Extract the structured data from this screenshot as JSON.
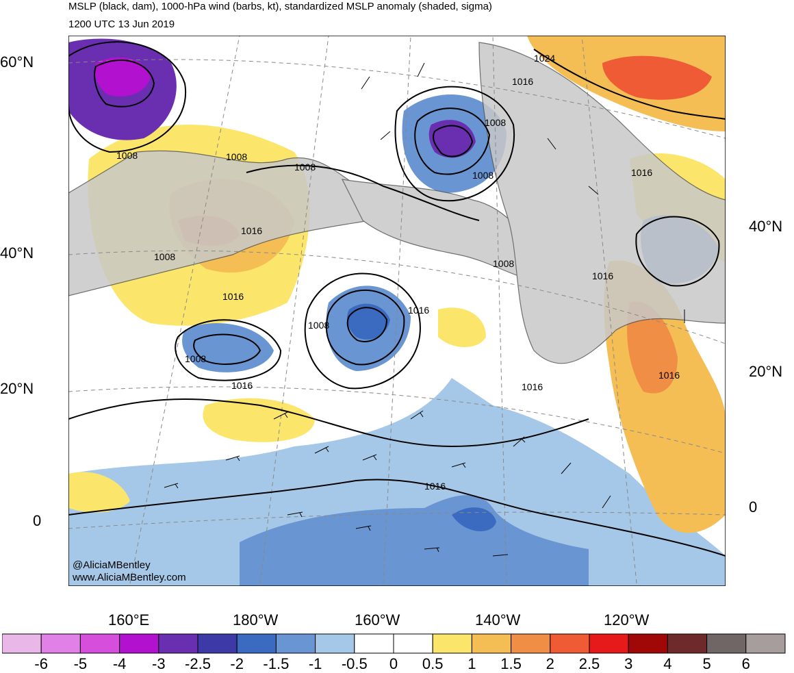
{
  "header": {
    "title_line1": "MSLP (black, dam), 1000-hPa wind (barbs, kt), standardized MSLP anomaly (shaded, sigma)",
    "title_line2": "1200 UTC 13 Jun 2019"
  },
  "axes": {
    "lat_left": [
      "60°N",
      "40°N",
      "20°N",
      "0"
    ],
    "lat_right": [
      "40°N",
      "20°N",
      "0"
    ],
    "lon_bottom": [
      "160°E",
      "180°W",
      "160°W",
      "140°W",
      "120°W"
    ]
  },
  "isobars": {
    "labels": [
      "1024",
      "1016",
      "1008",
      "1008",
      "1008",
      "1008",
      "1008",
      "1016",
      "1008",
      "1008",
      "1016",
      "1016",
      "1008",
      "1016",
      "1008",
      "1016",
      "1016",
      "1016",
      "1016",
      "1016"
    ]
  },
  "credits": {
    "twitter": "@AliciaMBentley",
    "website": "www.AliciaMBentley.com"
  },
  "colorbar": {
    "labels": [
      "-6",
      "-5",
      "-4",
      "-3",
      "-2.5",
      "-2",
      "-1.5",
      "-1",
      "-0.5",
      "0",
      "0.5",
      "1",
      "1.5",
      "2",
      "2.5",
      "3",
      "4",
      "5",
      "6"
    ],
    "colors": [
      "#e9b8e9",
      "#e180e6",
      "#d54fdc",
      "#b212cf",
      "#6a2fb0",
      "#3d3aa8",
      "#3a6bc1",
      "#6a95d3",
      "#a6c8e8",
      "#ffffff",
      "#ffffff",
      "#fbe66b",
      "#f4be55",
      "#f18e45",
      "#ee5b35",
      "#e61a1a",
      "#a00808",
      "#6e2a2a",
      "#716666",
      "#a89d9d"
    ]
  },
  "colors": {
    "land": "#c8c8c8",
    "coast": "#555555",
    "isobar": "#000000"
  }
}
